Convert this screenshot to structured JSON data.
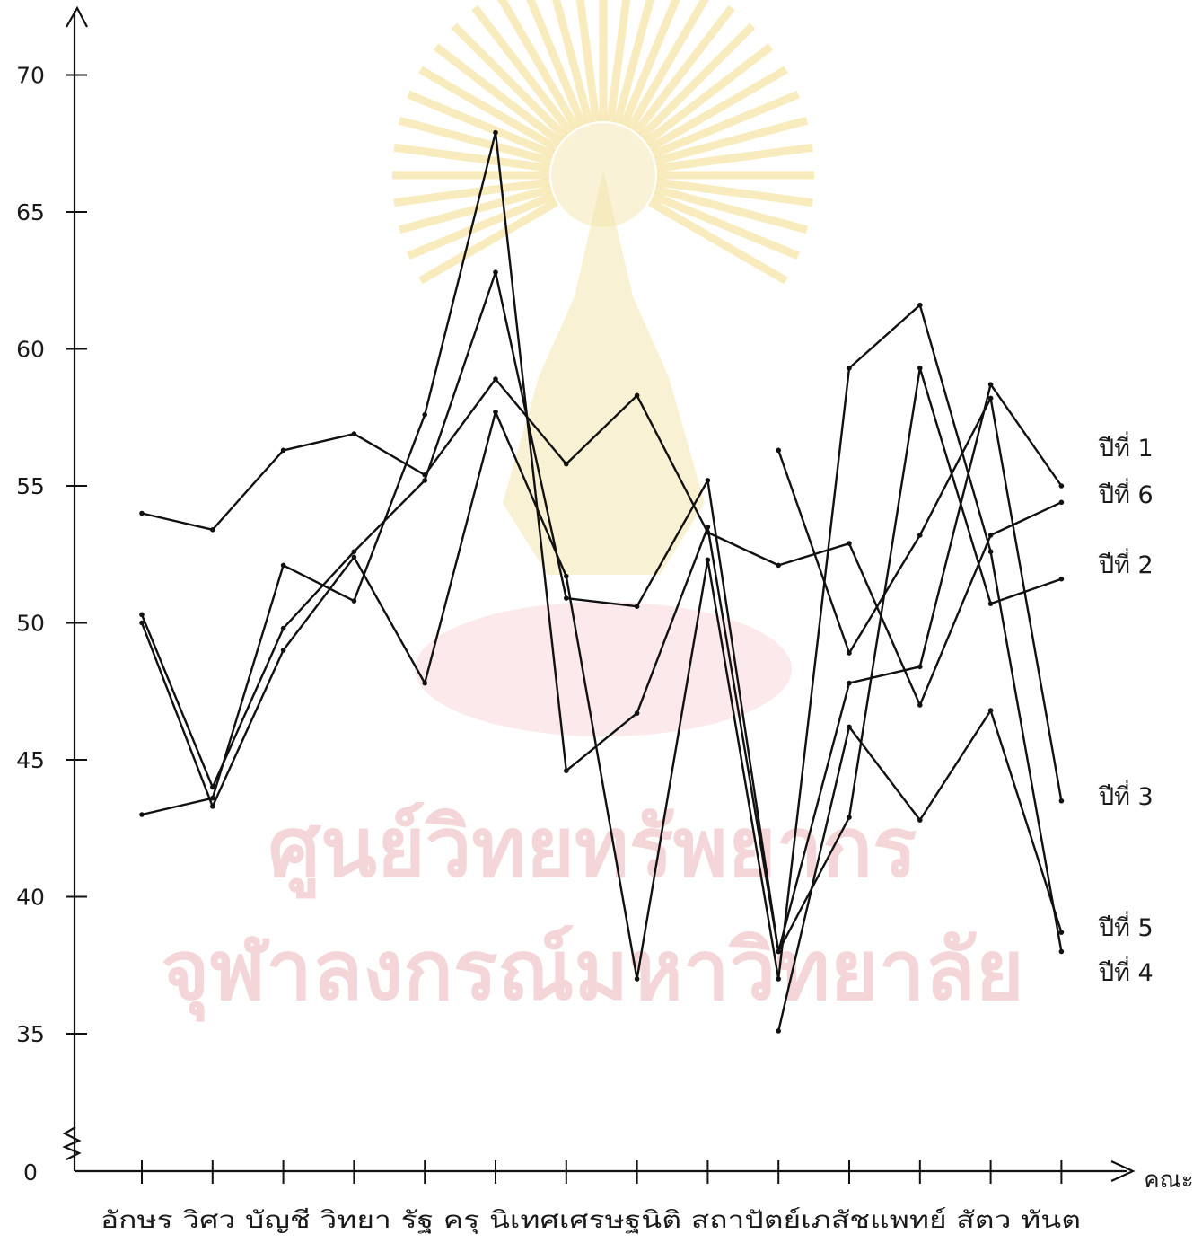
{
  "chart_data": {
    "type": "line",
    "title": "",
    "xlabel": "คณะ",
    "ylabel": "",
    "ylim": [
      35,
      70
    ],
    "y_axis_break": true,
    "y_ticks": [
      35,
      40,
      45,
      50,
      55,
      60,
      65,
      70
    ],
    "y_tick_labels": [
      "35",
      "40",
      "45",
      "50",
      "55",
      "60",
      "65",
      "70"
    ],
    "y_zero_label": "0",
    "grid": false,
    "legend": "direct labels at right end of lines",
    "categories": [
      "อักษร",
      "วิศว",
      "บัญชี",
      "วิทยา",
      "รัฐ",
      "ครุ",
      "นิเทศ",
      "เศรษฐ",
      "นิติ",
      "สถาปัตย์",
      "เภสัช",
      "แพทย์",
      "สัตว",
      "ทันต"
    ],
    "category_labels_row": "อักษร วิศว บัญชี วิทยา รัฐ ครุ นิเทศเศรษฐนิติ สถาปัตย์เภสัชแพทย์ สัตว ทันต",
    "series": [
      {
        "name": "ปีที่ 1",
        "values": [
          54.0,
          53.4,
          56.3,
          56.9,
          55.4,
          58.9,
          55.8,
          58.3,
          53.3,
          52.1,
          52.9,
          47.0,
          53.2,
          54.4
        ]
      },
      {
        "name": "ปีที่ 6",
        "values": [
          50.3,
          44.0,
          49.8,
          52.6,
          55.2,
          62.8,
          50.9,
          50.6,
          55.2,
          38.0,
          47.8,
          48.4,
          58.7,
          55.0
        ]
      },
      {
        "name": "ปีที่ 2",
        "values": [
          43.0,
          43.6,
          52.1,
          50.8,
          57.6,
          67.9,
          44.6,
          46.7,
          53.5,
          38.0,
          42.9,
          59.3,
          50.7,
          51.6
        ]
      },
      {
        "name": "ปีที่ 3",
        "values": [
          null,
          null,
          null,
          null,
          null,
          null,
          null,
          null,
          null,
          56.3,
          48.9,
          53.2,
          58.2,
          43.5
        ]
      },
      {
        "name": "ปีที่ 5",
        "values": [
          null,
          null,
          null,
          null,
          null,
          null,
          null,
          null,
          null,
          35.1,
          46.2,
          42.8,
          46.8,
          38.7
        ]
      },
      {
        "name": "ปีที่ 4",
        "values": [
          50.0,
          43.3,
          49.0,
          52.4,
          47.8,
          57.7,
          51.7,
          37.0,
          52.3,
          37.0,
          59.3,
          61.6,
          52.6,
          38.0
        ]
      }
    ]
  },
  "watermark": {
    "line1": "ศูนย์วิทยทรัพยากร",
    "line2": "จุฬาลงกรณ์มหาวิทยาลัย"
  }
}
